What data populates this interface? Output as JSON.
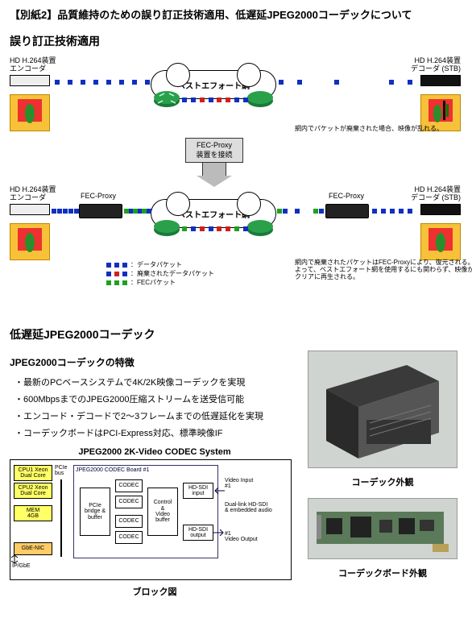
{
  "doc_title": "【別紙2】品質維持のための誤り訂正技術適用、低遅延JPEG2000コーデックについて",
  "section1": {
    "title": "誤り訂正技術適用",
    "encoder_label": "HD H.264装置\nエンコーダ",
    "decoder_label": "HD H.264装置\nデコーダ (STB)",
    "fecproxy_label": "FEC-Proxy",
    "cloud_label_top": "ベストエフォート網",
    "cloud_label_bottom": "ベストエフォート網",
    "arrow_caption": "FEC-Proxy\n装置を接続",
    "note_top": "網内でパケットが廃棄された場合、映像が乱れる。",
    "note_bottom": "網内で廃棄されたパケットはFEC-Proxyにより、復元される。\nよって、ベストエフォート網を使用するにも関わらず、映像が\nクリアに再生される。",
    "legend": {
      "data_packet": "：データパケット",
      "discarded_packet": "：廃棄されたデータパケット",
      "fec_packet": "：FECパケット"
    },
    "packet_colors": {
      "data": "#1030c0",
      "discarded": "#d02020",
      "fec": "#20a020"
    },
    "row_top": {
      "left_dots": [
        "blue",
        "blue",
        "blue",
        "blue",
        "blue",
        "blue",
        "blue",
        "blue"
      ],
      "mid_dots": [
        "blue",
        "blue",
        "red",
        "blue",
        "red",
        "red",
        "blue",
        "blue"
      ],
      "right_dots": [
        "blue",
        "blue",
        "",
        "blue",
        "",
        "",
        "blue",
        "blue"
      ]
    },
    "row_bottom": {
      "left_seg1": [
        "blue",
        "blue",
        "blue",
        "blue",
        "blue"
      ],
      "left_seg2": [
        "green",
        "blue",
        "green",
        "blue",
        "green",
        "blue"
      ],
      "mid_dots": [
        "green",
        "blue",
        "red",
        "blue",
        "red",
        "red",
        "green",
        "blue"
      ],
      "right_seg1": [
        "green",
        "blue",
        "",
        "blue",
        "",
        "",
        "green",
        "blue"
      ],
      "right_seg2": [
        "blue",
        "blue",
        "blue",
        "blue",
        "blue"
      ]
    }
  },
  "section2": {
    "title": "低遅延JPEG2000コーデック",
    "subtitle": "JPEG2000コーデックの特徴",
    "bullets": [
      "最新のPCベースシステムで4K/2K映像コーデックを実現",
      "600MbpsまでのJPEG2000圧縮ストリームを送受信可能",
      "エンコード・デコードで2～3フレームまでの低遅延化を実現",
      "コーデックボードはPCI-Express対応、標準映像IF"
    ],
    "blockdia": {
      "title": "JPEG2000 2K-Video CODEC System",
      "cpu1": "CPU1 Xeon\nDual Core",
      "cpu2": "CPU2 Xeon\nDual Core",
      "mem": "MEM\n4GB",
      "nic": "GbE-NIC",
      "ipgbe": "IP/GbE",
      "pcie_bus": "PCIe\nbus",
      "board_title": "JPEG2000 CODEC Board #1",
      "pcie_bridge": "PCIe\nbridge &\nbuffer",
      "codec": "CODEC",
      "ctrl_buf": "Control\n&\nVideo\nbuffer",
      "hdsdi_in": "HD-SDI\ninput",
      "hdsdi_out": "HD-SDI\noutput",
      "video_in": "Video Input\n#1",
      "dual_link": "Dual-link HD-SDI\n& embedded audio",
      "video_out": "#1\nVideo Output",
      "caption": "ブロック図",
      "colors": {
        "cpu": "#ffff66",
        "nic": "#ffcc66",
        "board_border": "#223366"
      }
    },
    "photos": {
      "server_caption": "コーデック外観",
      "board_caption": "コーデックボード外観",
      "server_color_body": "#3a3a3a",
      "server_color_face": "#555555",
      "board_color_pcb": "#5a7a5a",
      "board_color_chip": "#222222"
    }
  }
}
